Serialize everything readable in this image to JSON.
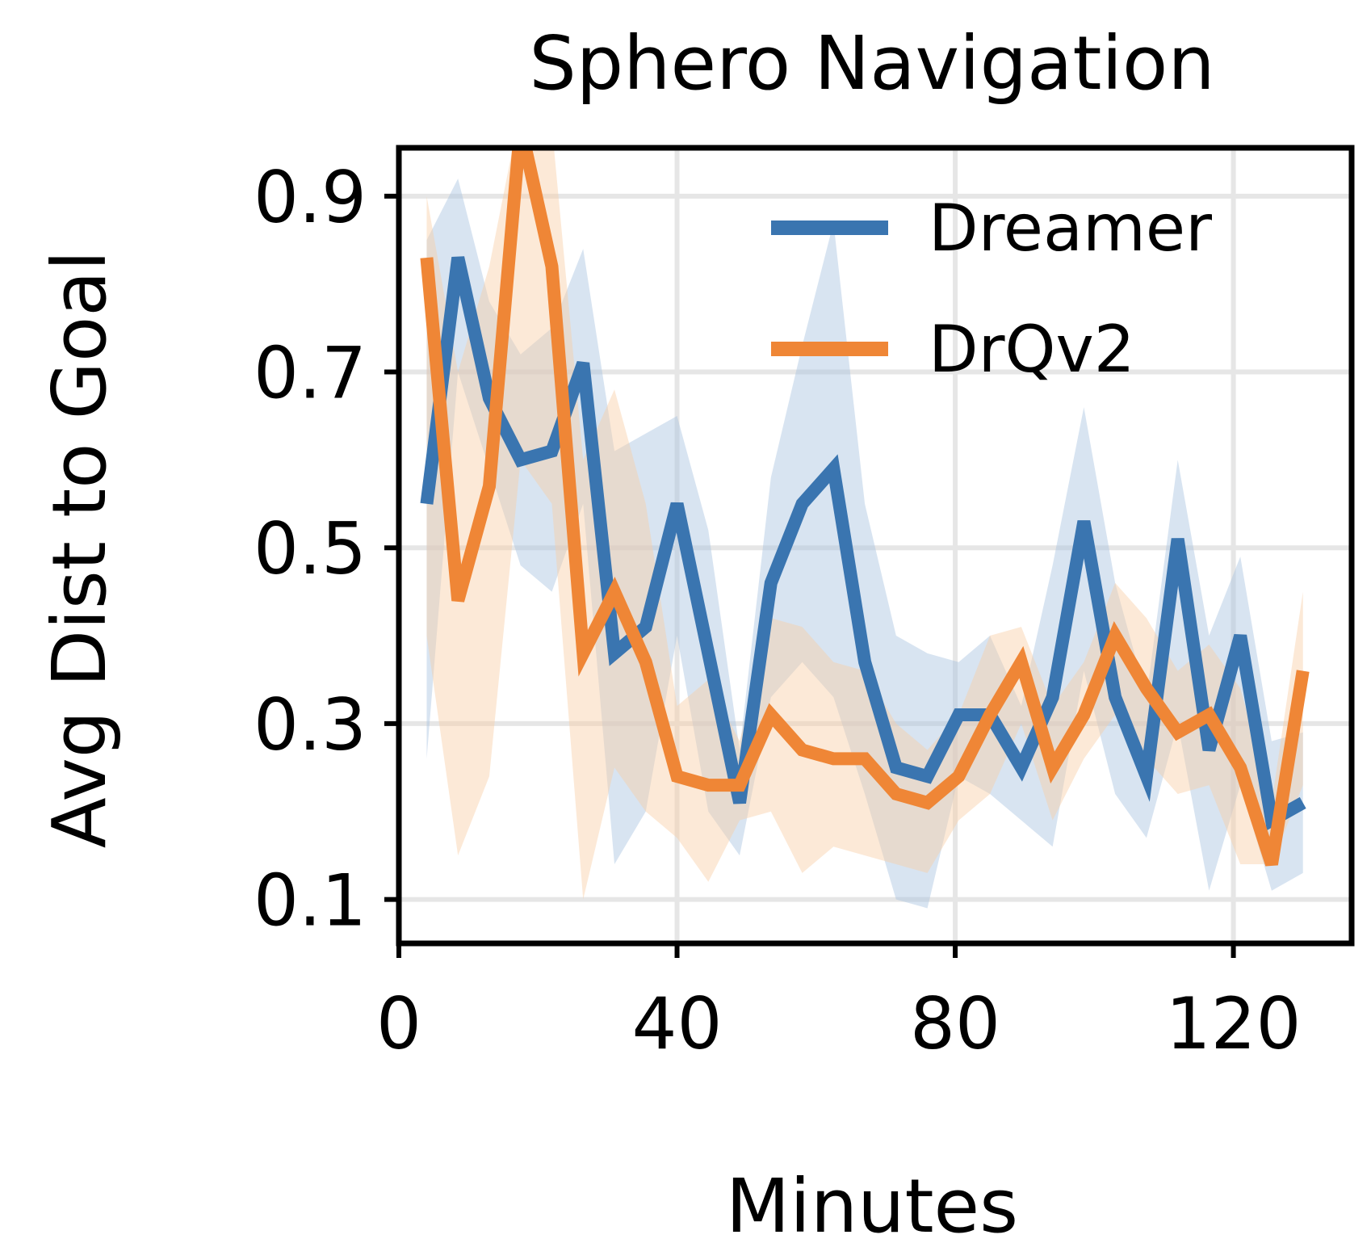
{
  "chart_data": {
    "type": "line",
    "title": "Sphero Navigation",
    "xlabel": "Minutes",
    "ylabel": "Avg Dist to Goal",
    "xlim": [
      0,
      137
    ],
    "ylim": [
      0.05,
      0.955
    ],
    "xticks": [
      0,
      40,
      80,
      120
    ],
    "yticks": [
      0.1,
      0.3,
      0.5,
      0.7,
      0.9
    ],
    "ytick_labels": [
      "0.1",
      "0.3",
      "0.5",
      "0.7",
      "0.9"
    ],
    "xtick_labels": [
      "0",
      "40",
      "80",
      "120"
    ],
    "grid": true,
    "legend_position": "top-right",
    "series": [
      {
        "name": "Dreamer",
        "color": "#3a75b0",
        "band_color": "#a8c4e0",
        "x": [
          4,
          8.5,
          13,
          17.5,
          22,
          26.5,
          31,
          35.5,
          40,
          44.5,
          49,
          53.5,
          58,
          62.5,
          67,
          71.5,
          76,
          80.5,
          85,
          89.5,
          94,
          98.5,
          103,
          107.5,
          112,
          116.5,
          121,
          125.5,
          130
        ],
        "y": [
          0.55,
          0.83,
          0.67,
          0.6,
          0.61,
          0.71,
          0.38,
          0.41,
          0.55,
          0.38,
          0.21,
          0.46,
          0.55,
          0.59,
          0.37,
          0.25,
          0.24,
          0.31,
          0.31,
          0.25,
          0.33,
          0.53,
          0.33,
          0.24,
          0.51,
          0.27,
          0.4,
          0.19,
          0.21
        ],
        "lower": [
          0.26,
          0.7,
          0.59,
          0.48,
          0.45,
          0.55,
          0.14,
          0.2,
          0.4,
          0.2,
          0.15,
          0.33,
          0.37,
          0.33,
          0.22,
          0.1,
          0.09,
          0.24,
          0.22,
          0.19,
          0.16,
          0.36,
          0.22,
          0.17,
          0.3,
          0.11,
          0.23,
          0.11,
          0.13
        ],
        "upper": [
          0.85,
          0.92,
          0.78,
          0.72,
          0.75,
          0.84,
          0.61,
          0.63,
          0.65,
          0.52,
          0.27,
          0.58,
          0.73,
          0.87,
          0.55,
          0.4,
          0.38,
          0.37,
          0.4,
          0.32,
          0.48,
          0.66,
          0.46,
          0.33,
          0.6,
          0.4,
          0.49,
          0.28,
          0.29
        ]
      },
      {
        "name": "DrQv2",
        "color": "#ef8636",
        "band_color": "#f8cfa6",
        "x": [
          4,
          8.5,
          13,
          17.5,
          22,
          26.5,
          31,
          35.5,
          40,
          44.5,
          49,
          53.5,
          58,
          62.5,
          67,
          71.5,
          76,
          80.5,
          85,
          89.5,
          94,
          98.5,
          103,
          107.5,
          112,
          116.5,
          121,
          125.5,
          130
        ],
        "y": [
          0.83,
          0.44,
          0.57,
          0.98,
          0.82,
          0.38,
          0.45,
          0.37,
          0.24,
          0.23,
          0.23,
          0.31,
          0.27,
          0.26,
          0.26,
          0.22,
          0.21,
          0.24,
          0.31,
          0.37,
          0.25,
          0.31,
          0.4,
          0.34,
          0.29,
          0.31,
          0.25,
          0.14,
          0.36
        ],
        "lower": [
          0.4,
          0.15,
          0.24,
          0.6,
          0.55,
          0.1,
          0.25,
          0.2,
          0.17,
          0.12,
          0.19,
          0.2,
          0.13,
          0.16,
          0.15,
          0.14,
          0.13,
          0.19,
          0.22,
          0.3,
          0.19,
          0.26,
          0.31,
          0.26,
          0.22,
          0.23,
          0.14,
          0.14,
          0.23
        ],
        "upper": [
          0.9,
          0.7,
          0.82,
          1.0,
          0.98,
          0.6,
          0.68,
          0.55,
          0.32,
          0.35,
          0.28,
          0.42,
          0.41,
          0.37,
          0.36,
          0.3,
          0.27,
          0.31,
          0.4,
          0.41,
          0.32,
          0.37,
          0.46,
          0.42,
          0.36,
          0.39,
          0.34,
          0.21,
          0.45
        ]
      }
    ]
  }
}
